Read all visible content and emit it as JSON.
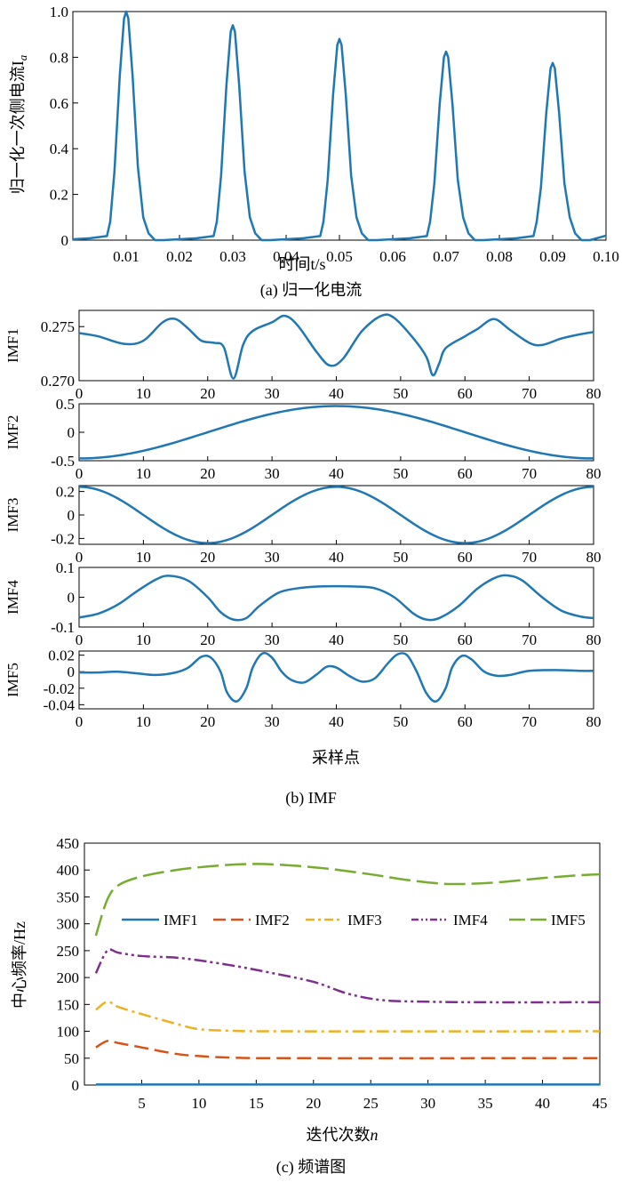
{
  "chart_data": [
    {
      "type": "line",
      "caption": "(a) 归一化电流",
      "ylabel": "归一化一次侧电流I",
      "ylabel_sub": "a",
      "xlabel": "时间t/s",
      "xlim": [
        0,
        0.1
      ],
      "ylim": [
        0,
        1.0
      ],
      "xticks": [
        "0.01",
        "0.02",
        "0.03",
        "0.04",
        "0.05",
        "0.06",
        "0.07",
        "0.08",
        "0.09",
        "0.10"
      ],
      "yticks": [
        "0",
        "0.2",
        "0.4",
        "0.6",
        "0.8",
        "1.0"
      ],
      "peaks": [
        {
          "t": 0.01,
          "value": 1.0
        },
        {
          "t": 0.03,
          "value": 0.94
        },
        {
          "t": 0.05,
          "value": 0.88
        },
        {
          "t": 0.07,
          "value": 0.825
        },
        {
          "t": 0.09,
          "value": 0.775
        }
      ],
      "color": "#1f77b4"
    },
    {
      "type": "line",
      "caption": "(b) IMF",
      "xlabel": "采样点",
      "xlim": [
        0,
        80
      ],
      "xticks": [
        "0",
        "10",
        "20",
        "30",
        "40",
        "50",
        "60",
        "70",
        "80"
      ],
      "panels": [
        {
          "label": "IMF1",
          "ylim": [
            0.27,
            0.2765
          ],
          "yticks": [
            "0.275",
            "0.270"
          ],
          "points": [
            [
              0,
              0.2744
            ],
            [
              3,
              0.2741
            ],
            [
              7,
              0.2734
            ],
            [
              10,
              0.2737
            ],
            [
              13,
              0.2754
            ],
            [
              15,
              0.2757
            ],
            [
              17,
              0.2748
            ],
            [
              19,
              0.2737
            ],
            [
              21,
              0.2735
            ],
            [
              22.5,
              0.2731
            ],
            [
              24,
              0.2702
            ],
            [
              25.5,
              0.2733
            ],
            [
              27,
              0.2746
            ],
            [
              30,
              0.2754
            ],
            [
              32,
              0.276
            ],
            [
              34,
              0.2751
            ],
            [
              37,
              0.2726
            ],
            [
              39,
              0.2714
            ],
            [
              41,
              0.272
            ],
            [
              44,
              0.2746
            ],
            [
              47,
              0.276
            ],
            [
              49,
              0.2758
            ],
            [
              52,
              0.2739
            ],
            [
              54,
              0.2722
            ],
            [
              55,
              0.2705
            ],
            [
              56,
              0.2716
            ],
            [
              57,
              0.273
            ],
            [
              60,
              0.2741
            ],
            [
              62,
              0.2748
            ],
            [
              64.5,
              0.2757
            ],
            [
              67,
              0.2747
            ],
            [
              70,
              0.2735
            ],
            [
              72,
              0.2733
            ],
            [
              75,
              0.2739
            ],
            [
              78,
              0.2743
            ],
            [
              80,
              0.2745
            ]
          ]
        },
        {
          "label": "IMF2",
          "ylim": [
            -0.5,
            0.5
          ],
          "yticks": [
            "0.5",
            "0",
            "-0.5"
          ],
          "amplitude": 0.46,
          "period": 80,
          "phase": 40,
          "shape": "cos"
        },
        {
          "label": "IMF3",
          "ylim": [
            -0.25,
            0.25
          ],
          "yticks": [
            "0.2",
            "0",
            "-0.2"
          ],
          "amplitude": 0.24,
          "period": 40,
          "phase": 0,
          "shape": "cos"
        },
        {
          "label": "IMF4",
          "ylim": [
            -0.1,
            0.1
          ],
          "yticks": [
            "0.1",
            "0",
            "-0.1"
          ],
          "points": [
            [
              0,
              -0.068
            ],
            [
              3,
              -0.055
            ],
            [
              6,
              -0.025
            ],
            [
              9,
              0.02
            ],
            [
              12,
              0.06
            ],
            [
              14,
              0.072
            ],
            [
              17,
              0.055
            ],
            [
              20,
              0.0
            ],
            [
              22,
              -0.05
            ],
            [
              24,
              -0.075
            ],
            [
              26,
              -0.07
            ],
            [
              28,
              -0.03
            ],
            [
              31,
              0.015
            ],
            [
              34,
              0.03
            ],
            [
              37,
              0.036
            ],
            [
              40,
              0.037
            ],
            [
              43,
              0.036
            ],
            [
              46,
              0.03
            ],
            [
              49,
              0.0
            ],
            [
              52,
              -0.055
            ],
            [
              54,
              -0.075
            ],
            [
              56,
              -0.07
            ],
            [
              59,
              -0.03
            ],
            [
              62,
              0.03
            ],
            [
              65,
              0.068
            ],
            [
              67,
              0.072
            ],
            [
              69,
              0.055
            ],
            [
              72,
              0.0
            ],
            [
              75,
              -0.045
            ],
            [
              78,
              -0.065
            ],
            [
              80,
              -0.07
            ]
          ]
        },
        {
          "label": "IMF5",
          "ylim": [
            -0.045,
            0.025
          ],
          "yticks": [
            "0.02",
            "0",
            "-0.02",
            "-0.04"
          ],
          "points": [
            [
              0,
              -0.001
            ],
            [
              3,
              -0.001
            ],
            [
              6,
              0.0
            ],
            [
              9,
              -0.002
            ],
            [
              12,
              -0.004
            ],
            [
              15,
              -0.001
            ],
            [
              17,
              0.005
            ],
            [
              19,
              0.018
            ],
            [
              20.5,
              0.017
            ],
            [
              22,
              0.0
            ],
            [
              23,
              -0.025
            ],
            [
              24.5,
              -0.036
            ],
            [
              26,
              -0.02
            ],
            [
              27,
              0.005
            ],
            [
              28.5,
              0.022
            ],
            [
              30,
              0.017
            ],
            [
              31.5,
              0.0
            ],
            [
              33,
              -0.01
            ],
            [
              35,
              -0.013
            ],
            [
              37,
              -0.003
            ],
            [
              38.5,
              0.006
            ],
            [
              40,
              0.005
            ],
            [
              42,
              -0.005
            ],
            [
              44,
              -0.012
            ],
            [
              46,
              -0.008
            ],
            [
              48,
              0.01
            ],
            [
              49.5,
              0.021
            ],
            [
              51,
              0.02
            ],
            [
              52.5,
              0.0
            ],
            [
              54,
              -0.026
            ],
            [
              55.5,
              -0.036
            ],
            [
              57,
              -0.02
            ],
            [
              58,
              0.005
            ],
            [
              59.5,
              0.019
            ],
            [
              61,
              0.015
            ],
            [
              63,
              0.0
            ],
            [
              65,
              -0.005
            ],
            [
              67,
              -0.004
            ],
            [
              70,
              0.001
            ],
            [
              74,
              0.002
            ],
            [
              78,
              0.001
            ],
            [
              80,
              0.001
            ]
          ]
        }
      ],
      "color": "#1f77b4"
    },
    {
      "type": "line",
      "caption": "(c) 频谱图",
      "ylabel": "中心频率/Hz",
      "xlabel": "迭代次数",
      "xlabel_var": "n",
      "xlim": [
        0,
        45
      ],
      "ylim": [
        0,
        450
      ],
      "xticks": [
        "5",
        "10",
        "15",
        "20",
        "25",
        "30",
        "35",
        "40",
        "45"
      ],
      "yticks": [
        "0",
        "50",
        "100",
        "150",
        "200",
        "250",
        "300",
        "350",
        "400",
        "450"
      ],
      "series": [
        {
          "name": "IMF1",
          "color": "#1f77b4",
          "dash": "",
          "values": [
            [
              1,
              1
            ],
            [
              45,
              1
            ]
          ]
        },
        {
          "name": "IMF2",
          "color": "#d95319",
          "dash": "16 7",
          "values": [
            [
              1,
              70
            ],
            [
              2,
              82
            ],
            [
              3,
              78
            ],
            [
              5,
              70
            ],
            [
              8,
              58
            ],
            [
              10,
              54
            ],
            [
              13,
              51
            ],
            [
              18,
              50
            ],
            [
              45,
              50
            ]
          ]
        },
        {
          "name": "IMF3",
          "color": "#edb120",
          "dash": "14 5 3 5",
          "values": [
            [
              1,
              140
            ],
            [
              2,
              155
            ],
            [
              3,
              145
            ],
            [
              5,
              132
            ],
            [
              8,
              114
            ],
            [
              10,
              104
            ],
            [
              13,
              101
            ],
            [
              18,
              100
            ],
            [
              45,
              100
            ]
          ]
        },
        {
          "name": "IMF4",
          "color": "#7e2f8e",
          "dash": "14 4 3 4 3 4",
          "values": [
            [
              1,
              208
            ],
            [
              2,
              250
            ],
            [
              3,
              246
            ],
            [
              5,
              240
            ],
            [
              8,
              237
            ],
            [
              10,
              232
            ],
            [
              13,
              222
            ],
            [
              16,
              210
            ],
            [
              20,
              192
            ],
            [
              23,
              170
            ],
            [
              26,
              158
            ],
            [
              30,
              155
            ],
            [
              35,
              154
            ],
            [
              45,
              154
            ]
          ]
        },
        {
          "name": "IMF5",
          "color": "#77ac30",
          "dash": "24 7",
          "values": [
            [
              1,
              278
            ],
            [
              2,
              345
            ],
            [
              3,
              372
            ],
            [
              5,
              388
            ],
            [
              8,
              400
            ],
            [
              11,
              407
            ],
            [
              14,
              411
            ],
            [
              17,
              410
            ],
            [
              21,
              403
            ],
            [
              25,
              392
            ],
            [
              28,
              382
            ],
            [
              31,
              375
            ],
            [
              33,
              374
            ],
            [
              36,
              377
            ],
            [
              40,
              385
            ],
            [
              43,
              390
            ],
            [
              45,
              392
            ]
          ]
        }
      ],
      "legend": "inside-top"
    }
  ]
}
